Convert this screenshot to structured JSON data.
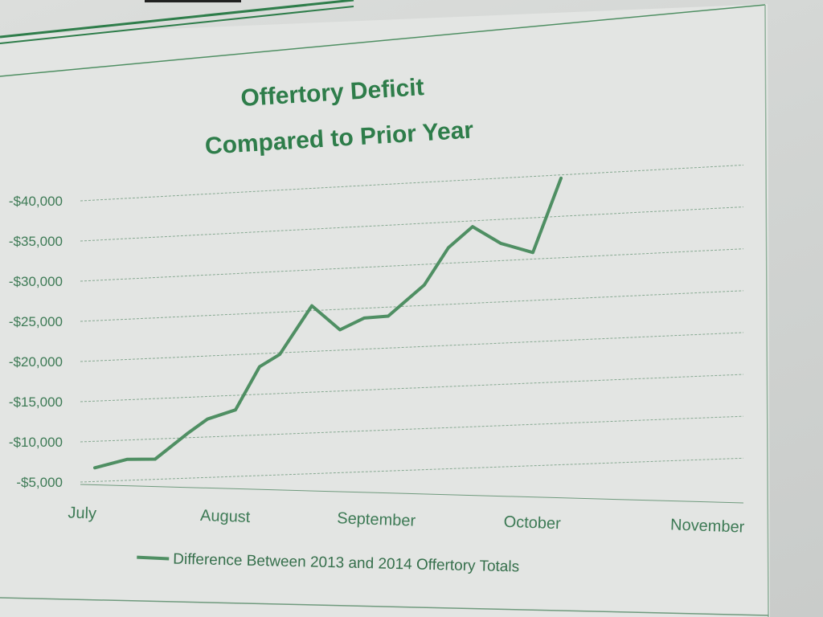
{
  "colors": {
    "series": "#4f8f63",
    "accent": "#2e7d4a",
    "grid": "#6f9a7d",
    "text": "#3d7a55"
  },
  "chart_data": {
    "type": "line",
    "title_lines": [
      "Offertory Deficit",
      "Compared to Prior Year"
    ],
    "y_ticks": [
      {
        "value": 5000,
        "label": "-$5,000"
      },
      {
        "value": 10000,
        "label": "-$10,000"
      },
      {
        "value": 15000,
        "label": "-$15,000"
      },
      {
        "value": 20000,
        "label": "-$20,000"
      },
      {
        "value": 25000,
        "label": "-$25,000"
      },
      {
        "value": 30000,
        "label": "-$30,000"
      },
      {
        "value": 35000,
        "label": "-$35,000"
      },
      {
        "value": 40000,
        "label": "-$40,000"
      }
    ],
    "ylim": [
      5000,
      40000
    ],
    "categories": [
      "July",
      "August",
      "September",
      "October",
      "November"
    ],
    "grid": true,
    "legend_position": "bottom",
    "series": [
      {
        "name": "Difference Between 2013 and 2014 Offertory Totals",
        "x": [
          0,
          0.4,
          0.75,
          1.15,
          1.4,
          1.75,
          2.05,
          2.3,
          2.7,
          3.05,
          3.35,
          3.65,
          4.1,
          4.4,
          4.7,
          5.05,
          5.45,
          5.8,
          6.2,
          6.7,
          7.15,
          7.5
        ],
        "values": [
          6700,
          7600,
          7500,
          10500,
          12200,
          13200,
          18400,
          19800,
          25600,
          22500,
          23800,
          23900,
          27500,
          31900,
          34300,
          32100,
          30800,
          39600,
          null,
          null,
          null,
          null
        ]
      }
    ]
  }
}
